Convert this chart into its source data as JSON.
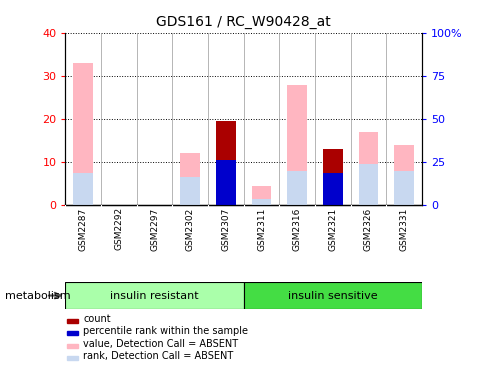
{
  "title": "GDS161 / RC_W90428_at",
  "samples": [
    "GSM2287",
    "GSM2292",
    "GSM2297",
    "GSM2302",
    "GSM2307",
    "GSM2311",
    "GSM2316",
    "GSM2321",
    "GSM2326",
    "GSM2331"
  ],
  "value_absent": [
    33.0,
    0,
    0,
    12.0,
    0,
    4.5,
    28.0,
    0,
    17.0,
    14.0
  ],
  "rank_absent": [
    7.5,
    0,
    0,
    6.5,
    0,
    1.5,
    8.0,
    0,
    9.5,
    8.0
  ],
  "count": [
    0,
    0,
    0,
    0,
    19.5,
    0,
    0,
    13.0,
    0,
    0
  ],
  "percentile_rank": [
    0,
    0,
    0,
    0,
    10.5,
    0,
    0,
    7.5,
    0,
    0
  ],
  "ylim_left": [
    0,
    40
  ],
  "ylim_right": [
    0,
    100
  ],
  "yticks_left": [
    0,
    10,
    20,
    30,
    40
  ],
  "yticks_right": [
    0,
    25,
    50,
    75,
    100
  ],
  "ytick_labels_left": [
    "0",
    "10",
    "20",
    "30",
    "40"
  ],
  "ytick_labels_right": [
    "0",
    "25",
    "50",
    "75",
    "100%"
  ],
  "color_value_absent": "#FFB6C1",
  "color_rank_absent": "#C8D8F0",
  "color_count": "#AA0000",
  "color_percentile": "#0000CC",
  "bg_color": "#FFFFFF",
  "bar_bg_color": "#D3D3D3",
  "group1_color": "#AAFFAA",
  "group2_color": "#44DD44",
  "legend_items": [
    {
      "color": "#AA0000",
      "label": "count"
    },
    {
      "color": "#0000CC",
      "label": "percentile rank within the sample"
    },
    {
      "color": "#FFB6C1",
      "label": "value, Detection Call = ABSENT"
    },
    {
      "color": "#C8D8F0",
      "label": "rank, Detection Call = ABSENT"
    }
  ]
}
